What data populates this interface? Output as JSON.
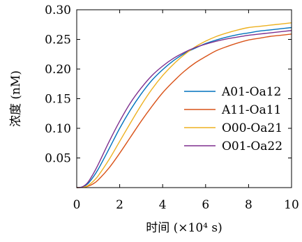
{
  "chart_data": {
    "type": "line",
    "xlabel": "时间 (×10⁴ s)",
    "ylabel": "浓度 (nM)",
    "xlim": [
      0,
      10
    ],
    "ylim": [
      0,
      0.3
    ],
    "x_ticks": [
      0,
      2,
      4,
      6,
      8,
      10
    ],
    "x_tick_labels": [
      "0",
      "2",
      "4",
      "6",
      "8",
      "10"
    ],
    "y_ticks": [
      0.05,
      0.1,
      0.15,
      0.2,
      0.25,
      0.3
    ],
    "y_tick_labels": [
      "0.05",
      "0.10",
      "0.15",
      "0.20",
      "0.25",
      "0.30"
    ],
    "grid": false,
    "legend_position": "center-right",
    "x": [
      0,
      0.25,
      0.5,
      0.75,
      1,
      1.5,
      2,
      2.5,
      3,
      3.5,
      4,
      4.5,
      5,
      5.5,
      6,
      6.5,
      7,
      7.5,
      8,
      8.5,
      9,
      9.5,
      10
    ],
    "series": [
      {
        "name": "A01-Oa12",
        "color": "#0072BD",
        "values": [
          0,
          0.0008,
          0.006,
          0.017,
          0.031,
          0.065,
          0.1,
          0.131,
          0.158,
          0.181,
          0.199,
          0.214,
          0.226,
          0.235,
          0.243,
          0.249,
          0.254,
          0.258,
          0.261,
          0.264,
          0.266,
          0.268,
          0.27
        ]
      },
      {
        "name": "A11-Oa11",
        "color": "#D95319",
        "values": [
          0,
          0.0004,
          0.002,
          0.006,
          0.013,
          0.033,
          0.058,
          0.085,
          0.112,
          0.137,
          0.16,
          0.179,
          0.196,
          0.21,
          0.221,
          0.231,
          0.238,
          0.244,
          0.249,
          0.252,
          0.255,
          0.257,
          0.259
        ]
      },
      {
        "name": "O00-Oa21",
        "color": "#EDB120",
        "values": [
          0,
          0.0005,
          0.003,
          0.01,
          0.02,
          0.047,
          0.078,
          0.109,
          0.139,
          0.166,
          0.189,
          0.208,
          0.224,
          0.237,
          0.247,
          0.255,
          0.261,
          0.266,
          0.27,
          0.272,
          0.274,
          0.276,
          0.278
        ]
      },
      {
        "name": "O01-Oa22",
        "color": "#7E2F8E",
        "values": [
          0,
          0.0012,
          0.008,
          0.022,
          0.039,
          0.077,
          0.112,
          0.143,
          0.168,
          0.189,
          0.205,
          0.218,
          0.228,
          0.236,
          0.242,
          0.247,
          0.251,
          0.254,
          0.257,
          0.259,
          0.261,
          0.263,
          0.265
        ]
      }
    ]
  }
}
